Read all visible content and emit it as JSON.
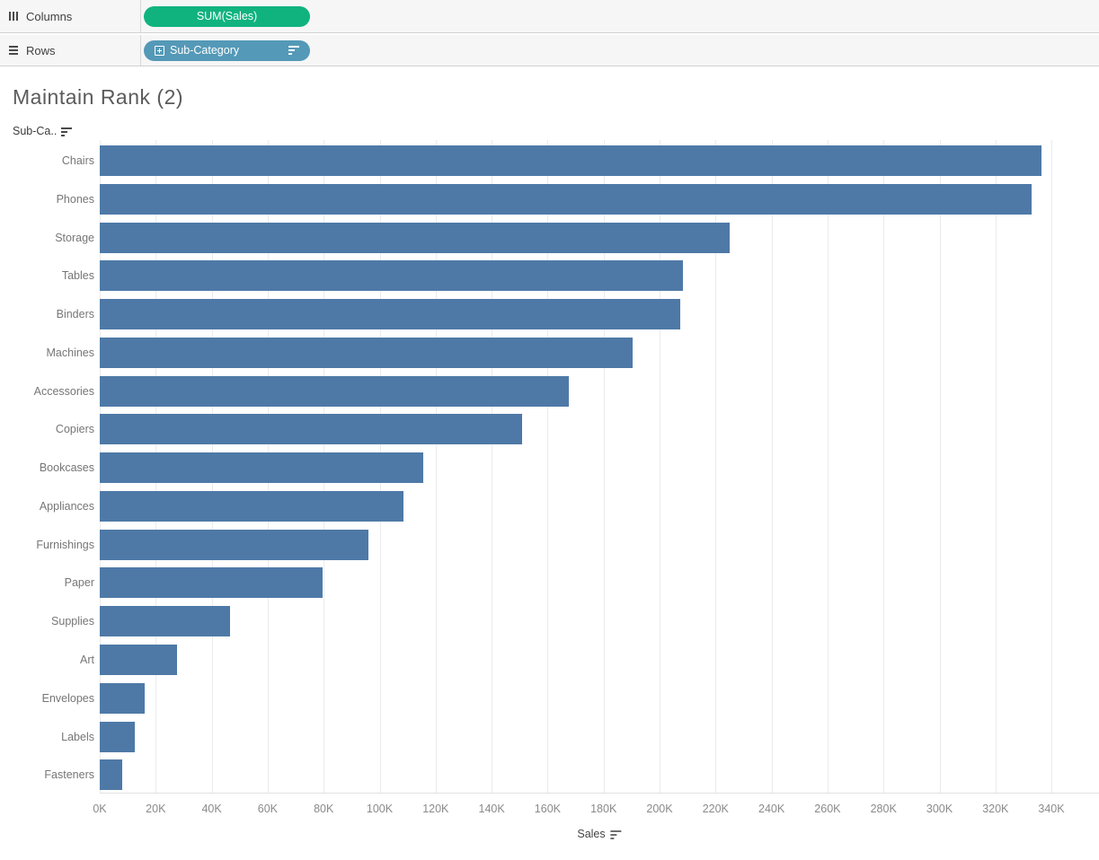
{
  "shelves": {
    "columns": {
      "label": "Columns",
      "pill": {
        "label": "SUM(Sales)",
        "color": "#10b37e",
        "type": "measure"
      }
    },
    "rows": {
      "label": "Rows",
      "pill": {
        "label": "Sub-Category",
        "color": "#5499b7",
        "type": "dimension",
        "expandable": true,
        "sorted": "descending"
      }
    }
  },
  "sheet": {
    "title": "Maintain Rank (2)",
    "row_field_header": "Sub-Ca..",
    "axis_title": "Sales"
  },
  "icons": {
    "columns_shelf": "columns-grid-icon",
    "rows_shelf": "rows-list-icon",
    "pill_expand": "expand-plus-icon",
    "sort": "sort-descending-icon"
  },
  "colors": {
    "bar": "#4e79a7",
    "green_pill": "#10b37e",
    "blue_pill": "#5499b7",
    "gridline": "#ebebeb",
    "shelf_bg": "#f6f6f6"
  },
  "chart_data": {
    "type": "bar",
    "orientation": "horizontal",
    "title": "Maintain Rank (2)",
    "xlabel": "Sales",
    "ylabel": "Sub-Category",
    "sort": "descending",
    "grid": true,
    "xlim": [
      0,
      357000
    ],
    "tick_interval": 20000,
    "tick_labels": [
      "0K",
      "20K",
      "40K",
      "60K",
      "80K",
      "100K",
      "120K",
      "140K",
      "160K",
      "180K",
      "200K",
      "220K",
      "240K",
      "260K",
      "280K",
      "300K",
      "320K",
      "340K"
    ],
    "categories": [
      "Chairs",
      "Phones",
      "Storage",
      "Tables",
      "Binders",
      "Machines",
      "Accessories",
      "Copiers",
      "Bookcases",
      "Appliances",
      "Furnishings",
      "Paper",
      "Supplies",
      "Art",
      "Envelopes",
      "Labels",
      "Fasteners"
    ],
    "values": [
      336500,
      333000,
      225000,
      208500,
      207500,
      190500,
      167500,
      151000,
      115500,
      108500,
      96000,
      79500,
      46500,
      27500,
      16000,
      12500,
      8000
    ]
  }
}
